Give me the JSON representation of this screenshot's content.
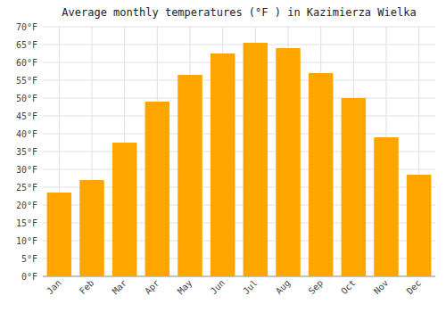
{
  "chart_data": {
    "type": "bar",
    "title": "Average monthly temperatures (°F ) in Kazimierza Wielka",
    "categories": [
      "Jan",
      "Feb",
      "Mar",
      "Apr",
      "May",
      "Jun",
      "Jul",
      "Aug",
      "Sep",
      "Oct",
      "Nov",
      "Dec"
    ],
    "values": [
      23.5,
      27.0,
      37.5,
      49.0,
      56.5,
      62.5,
      65.5,
      64.0,
      57.0,
      50.0,
      39.0,
      28.5
    ],
    "color": "#FFA500",
    "ylim": [
      0,
      70
    ],
    "yticks": [
      {
        "value": 0,
        "label": "0°F"
      },
      {
        "value": 5,
        "label": "5°F"
      },
      {
        "value": 10,
        "label": "10°F"
      },
      {
        "value": 15,
        "label": "15°F"
      },
      {
        "value": 20,
        "label": "20°F"
      },
      {
        "value": 25,
        "label": "25°F"
      },
      {
        "value": 30,
        "label": "30°F"
      },
      {
        "value": 35,
        "label": "35°F"
      },
      {
        "value": 40,
        "label": "40°F"
      },
      {
        "value": 45,
        "label": "45°F"
      },
      {
        "value": 50,
        "label": "50°F"
      },
      {
        "value": 55,
        "label": "55°F"
      },
      {
        "value": 60,
        "label": "60°F"
      },
      {
        "value": 65,
        "label": "65°F"
      },
      {
        "value": 70,
        "label": "70°F"
      }
    ],
    "grid": true
  }
}
